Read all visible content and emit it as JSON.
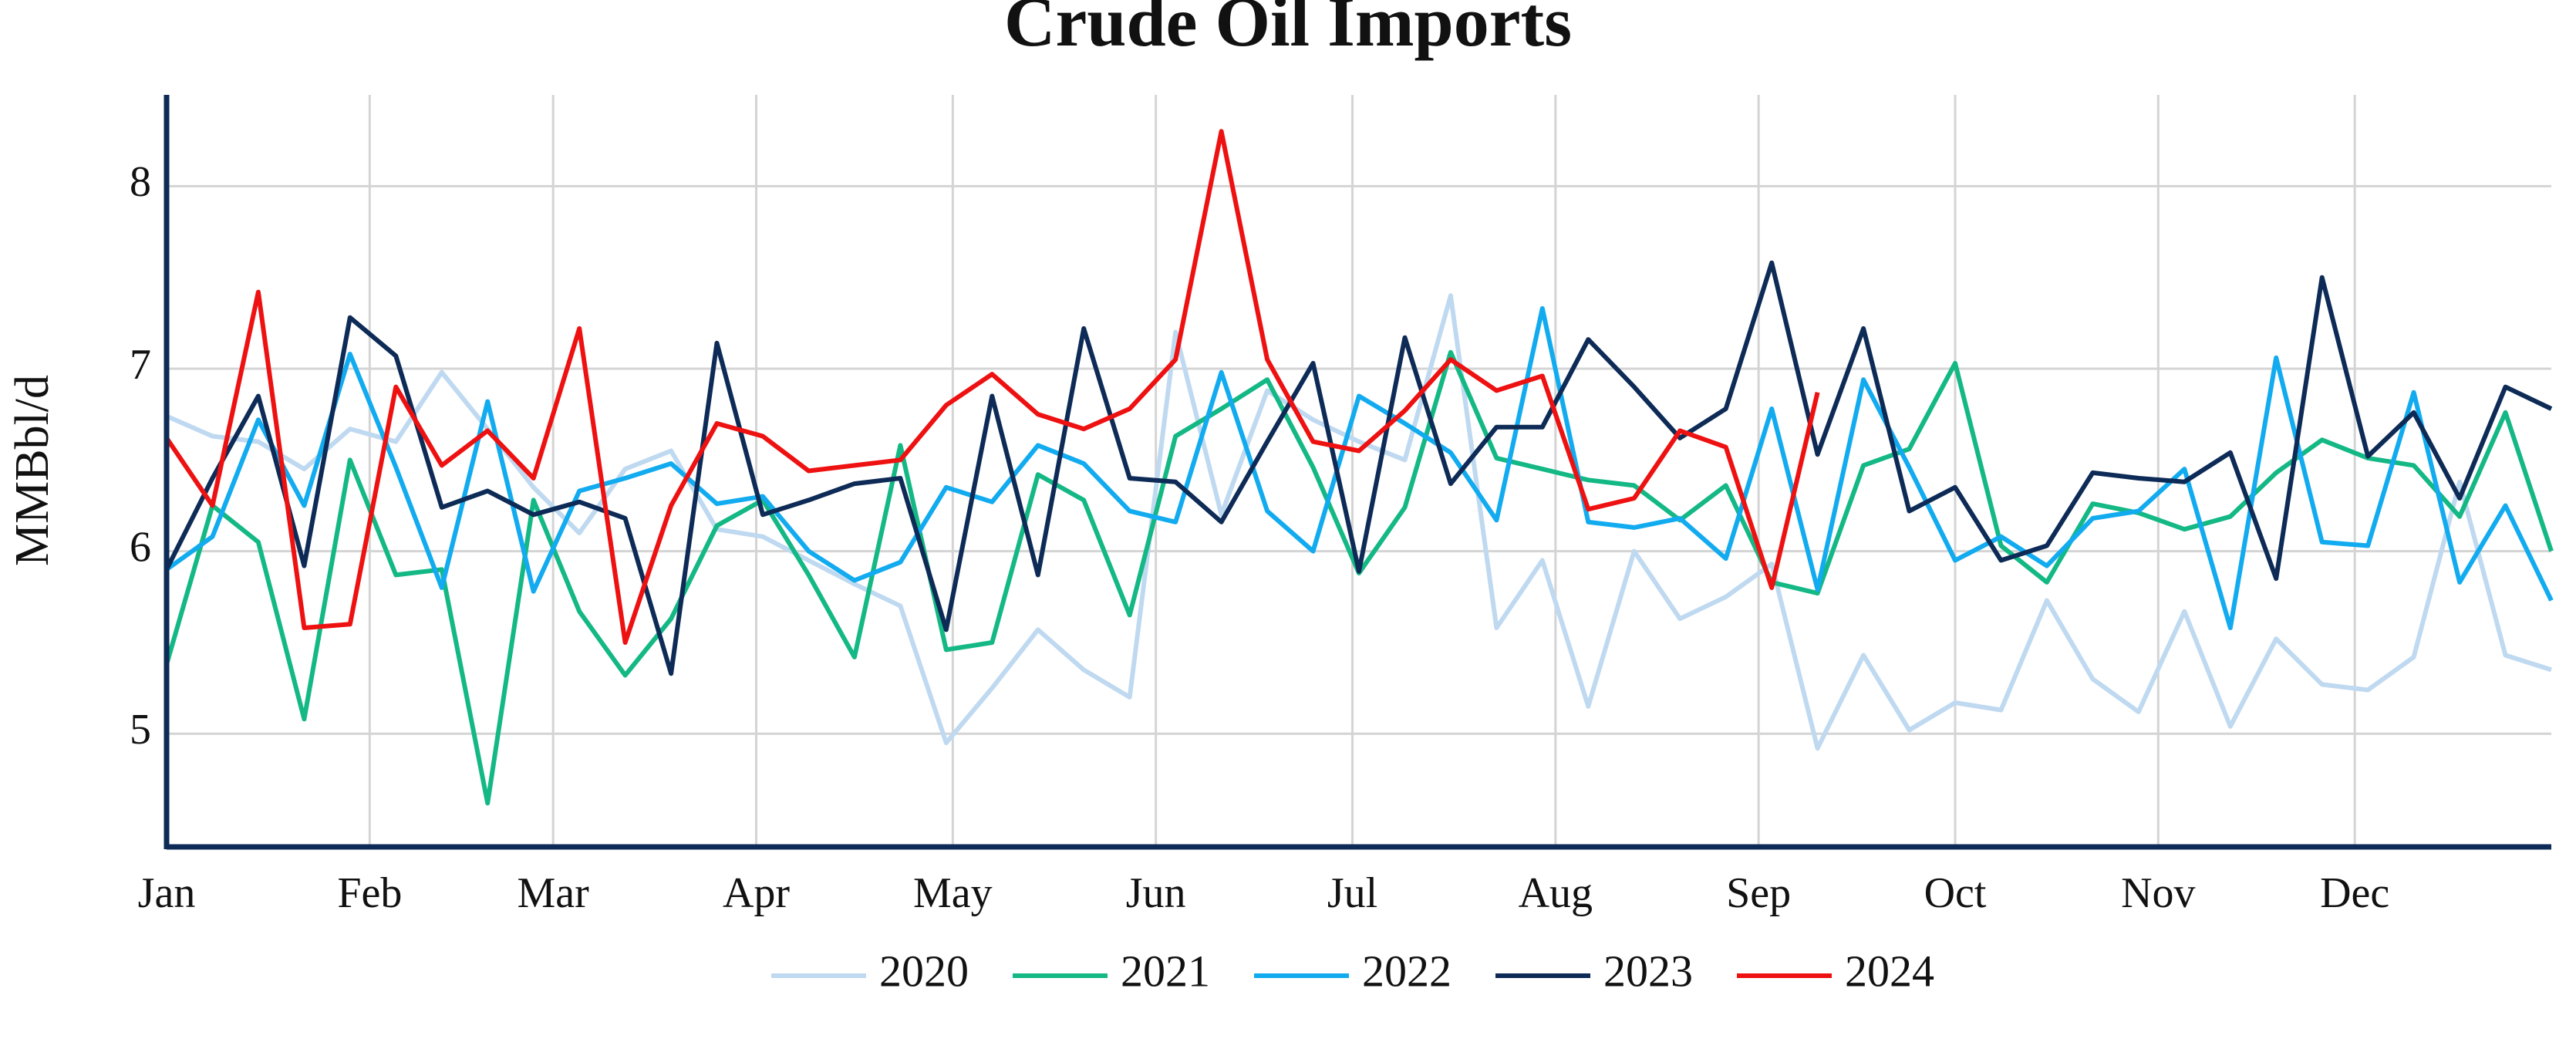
{
  "chart_data": {
    "type": "line",
    "title": "Crude Oil Imports",
    "y_label": "MMBbl/d",
    "x": [
      0,
      7,
      14,
      21,
      28,
      35,
      42,
      49,
      56,
      63,
      70,
      77,
      84,
      91,
      98,
      105,
      112,
      119,
      126,
      133,
      140,
      147,
      154,
      161,
      168,
      175,
      182,
      189,
      196,
      203,
      210,
      217,
      224,
      231,
      238,
      245,
      252,
      259,
      266,
      273,
      280,
      287,
      294,
      301,
      308,
      315,
      322,
      329,
      336,
      343,
      350,
      357,
      364
    ],
    "xlim": [
      0,
      364
    ],
    "xticks": [
      {
        "value": 0,
        "label": "Jan"
      },
      {
        "value": 31,
        "label": "Feb"
      },
      {
        "value": 59,
        "label": "Mar"
      },
      {
        "value": 90,
        "label": "Apr"
      },
      {
        "value": 120,
        "label": "May"
      },
      {
        "value": 151,
        "label": "Jun"
      },
      {
        "value": 181,
        "label": "Jul"
      },
      {
        "value": 212,
        "label": "Aug"
      },
      {
        "value": 243,
        "label": "Sep"
      },
      {
        "value": 273,
        "label": "Oct"
      },
      {
        "value": 304,
        "label": "Nov"
      },
      {
        "value": 334,
        "label": "Dec"
      }
    ],
    "ylim": [
      4.38,
      8.5
    ],
    "yticks": [
      5,
      6,
      7,
      8
    ],
    "grid": true,
    "legend": "bottom",
    "series": [
      {
        "name": "2020",
        "color": "#bfd9f0",
        "values": [
          6.74,
          6.63,
          6.6,
          6.45,
          6.67,
          6.6,
          6.98,
          6.67,
          6.35,
          6.1,
          6.45,
          6.55,
          6.12,
          6.08,
          5.95,
          5.82,
          5.7,
          4.95,
          5.25,
          5.57,
          5.35,
          5.2,
          7.2,
          6.2,
          6.88,
          6.72,
          6.6,
          6.5,
          7.4,
          5.58,
          5.95,
          5.15,
          6.0,
          5.63,
          5.75,
          5.93,
          4.92,
          5.43,
          5.02,
          5.17,
          5.13,
          5.73,
          5.3,
          5.12,
          5.67,
          5.04,
          5.52,
          5.27,
          5.24,
          5.42,
          6.38,
          5.43,
          5.35
        ]
      },
      {
        "name": "2021",
        "color": "#14b885",
        "values": [
          5.38,
          6.25,
          6.05,
          5.08,
          6.5,
          5.87,
          5.9,
          4.62,
          6.28,
          5.67,
          5.32,
          5.63,
          6.14,
          6.28,
          5.87,
          5.42,
          6.58,
          5.46,
          5.5,
          6.42,
          6.28,
          5.65,
          6.63,
          6.78,
          6.94,
          6.46,
          5.88,
          6.24,
          7.09,
          6.51,
          6.45,
          6.39,
          6.36,
          6.17,
          6.36,
          5.83,
          5.77,
          6.47,
          6.56,
          7.03,
          6.03,
          5.83,
          6.26,
          6.21,
          6.12,
          6.19,
          6.43,
          6.61,
          6.51,
          6.47,
          6.19,
          6.76,
          6.0
        ]
      },
      {
        "name": "2022",
        "color": "#12abef",
        "values": [
          5.9,
          6.08,
          6.72,
          6.25,
          7.08,
          6.46,
          5.8,
          6.82,
          5.78,
          6.33,
          6.4,
          6.48,
          6.26,
          6.3,
          6.0,
          5.84,
          5.94,
          6.35,
          6.27,
          6.58,
          6.48,
          6.22,
          6.16,
          6.98,
          6.22,
          6.0,
          6.85,
          6.7,
          6.54,
          6.17,
          7.33,
          6.16,
          6.13,
          6.18,
          5.96,
          6.78,
          5.79,
          6.94,
          6.46,
          5.95,
          6.08,
          5.92,
          6.18,
          6.22,
          6.45,
          5.58,
          7.06,
          6.05,
          6.03,
          6.87,
          5.83,
          6.25,
          5.73
        ]
      },
      {
        "name": "2023",
        "color": "#0d2b56",
        "values": [
          5.9,
          6.4,
          6.85,
          5.92,
          7.28,
          7.07,
          6.24,
          6.33,
          6.2,
          6.27,
          6.18,
          5.33,
          7.14,
          6.2,
          6.28,
          6.37,
          6.4,
          5.57,
          6.85,
          5.87,
          7.22,
          6.4,
          6.38,
          6.16,
          6.6,
          7.03,
          5.89,
          7.17,
          6.37,
          6.68,
          6.68,
          7.16,
          6.9,
          6.62,
          6.78,
          7.58,
          6.53,
          7.22,
          6.22,
          6.35,
          5.95,
          6.03,
          6.43,
          6.4,
          6.38,
          6.54,
          5.85,
          7.5,
          6.52,
          6.76,
          6.29,
          6.9,
          6.78
        ]
      },
      {
        "name": "2024",
        "color": "#ee1111",
        "values": [
          6.62,
          6.25,
          7.42,
          5.58,
          5.6,
          6.9,
          6.47,
          6.66,
          6.4,
          7.22,
          5.5,
          6.25,
          6.7,
          6.63,
          6.44,
          6.47,
          6.5,
          6.8,
          6.97,
          6.75,
          6.67,
          6.78,
          7.05,
          8.3,
          7.05,
          6.6,
          6.55,
          6.77,
          7.05,
          6.88,
          6.96,
          6.23,
          6.29,
          6.66,
          6.57,
          5.8,
          6.87,
          null,
          null,
          null,
          null,
          null,
          null,
          null,
          null,
          null,
          null,
          null,
          null,
          null,
          null,
          null,
          null
        ]
      }
    ]
  }
}
